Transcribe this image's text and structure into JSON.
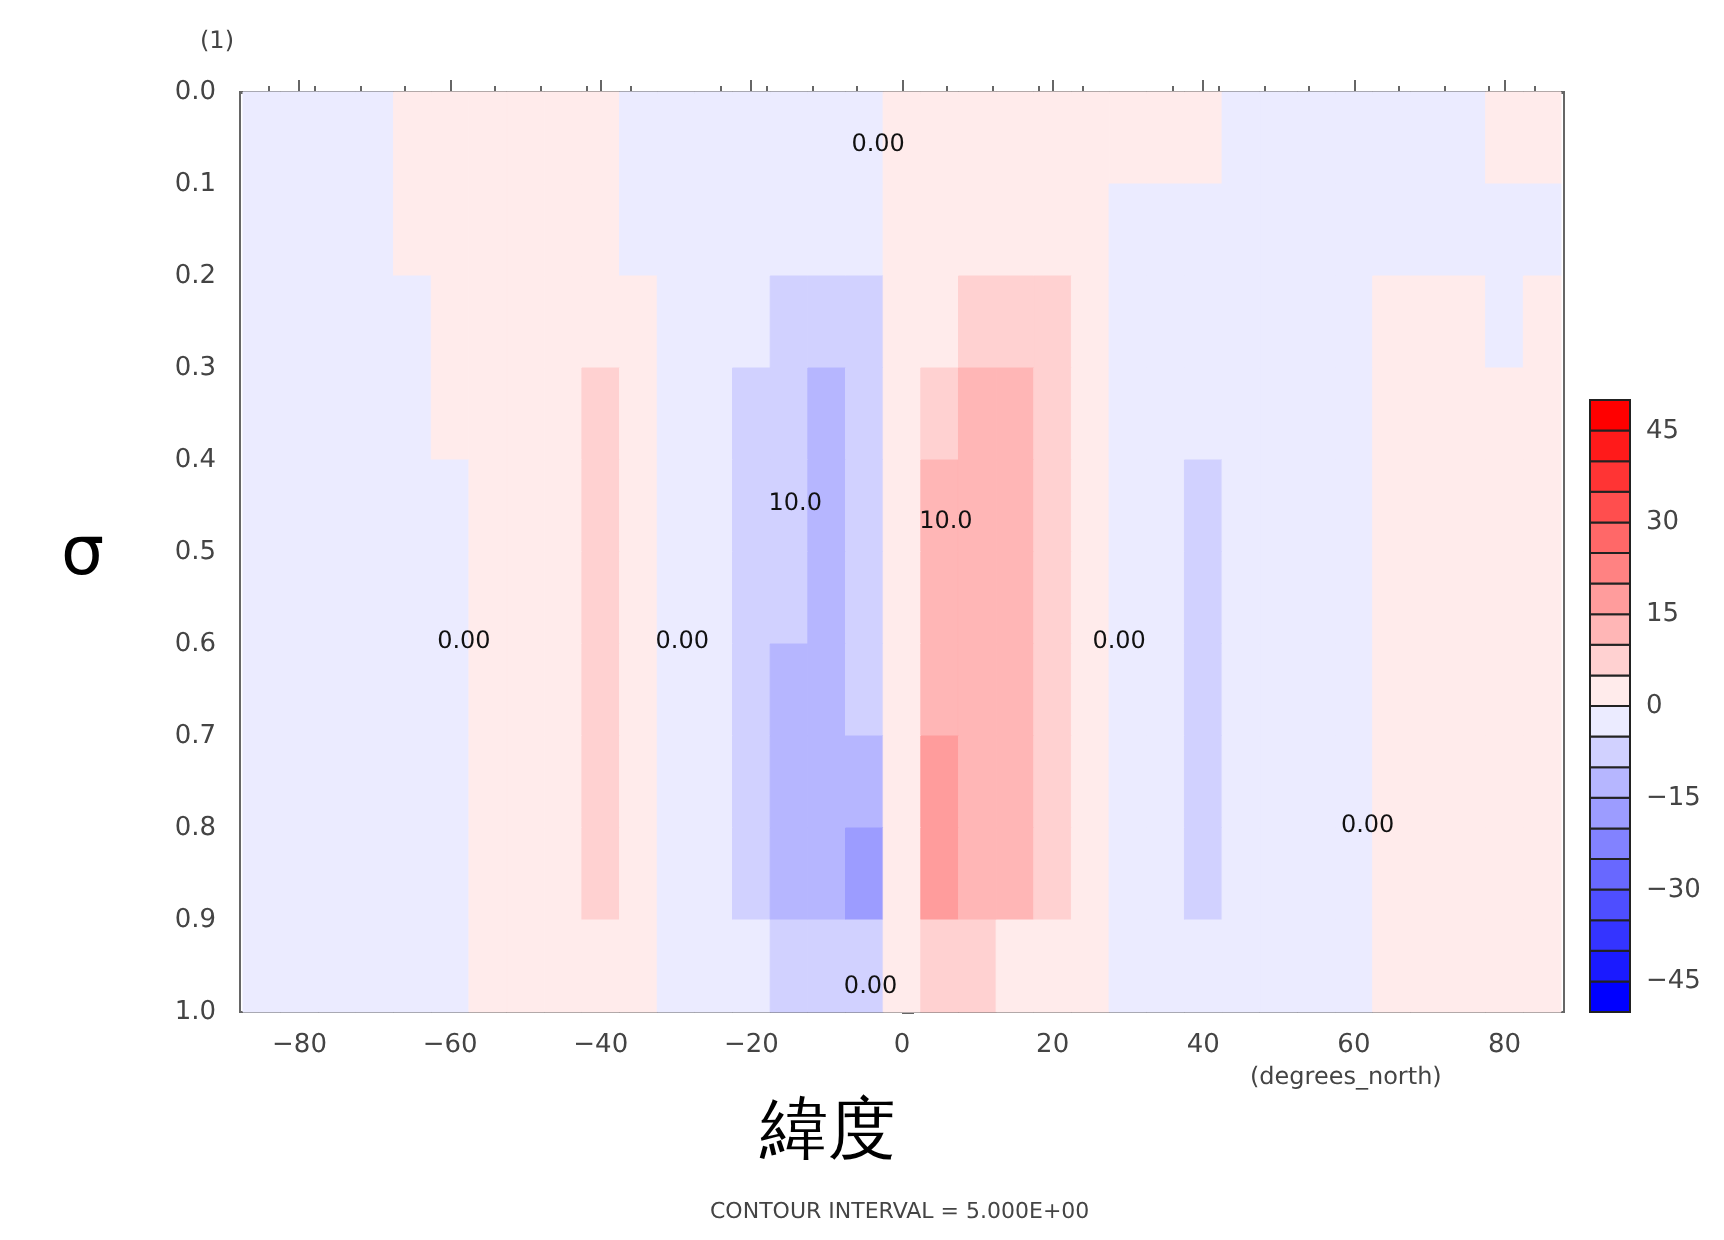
{
  "chart_data": {
    "type": "heatmap",
    "xlabel": "緯度",
    "ylabel": "σ",
    "x": [
      -85,
      -80,
      -75,
      -70,
      -65,
      -60,
      -55,
      -50,
      -45,
      -40,
      -35,
      -30,
      -25,
      -20,
      -15,
      -10,
      -5,
      0,
      5,
      10,
      15,
      20,
      25,
      30,
      35,
      40,
      45,
      50,
      55,
      60,
      65,
      70,
      75,
      80,
      85
    ],
    "y": [
      0.05,
      0.15,
      0.25,
      0.35,
      0.45,
      0.55,
      0.65,
      0.75,
      0.85,
      0.95
    ],
    "cells": [
      [
        -2,
        -2,
        -2,
        -2,
        2,
        2,
        2,
        2,
        2,
        2,
        -2,
        -2,
        -2,
        -2,
        -2,
        -2,
        -2,
        2,
        2,
        2,
        2,
        2,
        2,
        2,
        2,
        2,
        -2,
        -2,
        -2,
        -2,
        -2,
        -2,
        -2,
        2,
        2
      ],
      [
        -2,
        -2,
        -2,
        -2,
        2,
        2,
        2,
        2,
        2,
        2,
        -2,
        -2,
        -2,
        -2,
        -2,
        -2,
        -2,
        2,
        2,
        2,
        2,
        2,
        2,
        -2,
        -2,
        -2,
        -2,
        -2,
        -2,
        -2,
        -2,
        -2,
        -2,
        -2,
        -2
      ],
      [
        -2,
        -2,
        -2,
        -2,
        -2,
        2,
        2,
        2,
        2,
        2,
        2,
        -2,
        -2,
        -2,
        -7,
        -7,
        -7,
        2,
        2,
        7,
        7,
        7,
        2,
        -2,
        -2,
        -2,
        -2,
        -2,
        -2,
        -2,
        2,
        2,
        2,
        -2,
        2
      ],
      [
        -2,
        -2,
        -2,
        -2,
        -2,
        2,
        2,
        2,
        2,
        7,
        2,
        -2,
        -2,
        -7,
        -7,
        -12,
        -7,
        2,
        7,
        12,
        12,
        7,
        2,
        -2,
        -2,
        -2,
        -2,
        -2,
        -2,
        -2,
        2,
        2,
        2,
        2,
        2
      ],
      [
        -2,
        -2,
        -2,
        -2,
        -2,
        -2,
        2,
        2,
        2,
        7,
        2,
        -2,
        -2,
        -7,
        -7,
        -12,
        -7,
        2,
        12,
        12,
        12,
        7,
        2,
        -2,
        -2,
        -7,
        -2,
        -2,
        -2,
        -2,
        2,
        2,
        2,
        2,
        2
      ],
      [
        -2,
        -2,
        -2,
        -2,
        -2,
        -2,
        2,
        2,
        2,
        7,
        2,
        -2,
        -2,
        -7,
        -7,
        -12,
        -7,
        2,
        12,
        12,
        12,
        7,
        2,
        -2,
        -2,
        -7,
        -2,
        -2,
        -2,
        -2,
        2,
        2,
        2,
        2,
        2
      ],
      [
        -2,
        -2,
        -2,
        -2,
        -2,
        -2,
        2,
        2,
        2,
        7,
        2,
        -2,
        -2,
        -7,
        -12,
        -12,
        -7,
        2,
        12,
        12,
        12,
        7,
        2,
        -2,
        -2,
        -7,
        -2,
        -2,
        -2,
        -2,
        2,
        2,
        2,
        2,
        2
      ],
      [
        -2,
        -2,
        -2,
        -2,
        -2,
        -2,
        2,
        2,
        2,
        7,
        2,
        -2,
        -2,
        -7,
        -12,
        -12,
        -12,
        2,
        17,
        12,
        12,
        7,
        2,
        -2,
        -2,
        -7,
        -2,
        -2,
        -2,
        -2,
        2,
        2,
        2,
        2,
        2
      ],
      [
        -2,
        -2,
        -2,
        -2,
        -2,
        -2,
        2,
        2,
        2,
        7,
        2,
        -2,
        -2,
        -7,
        -12,
        -12,
        -17,
        2,
        17,
        12,
        12,
        7,
        2,
        -2,
        -2,
        -7,
        -2,
        -2,
        -2,
        -2,
        2,
        2,
        2,
        2,
        2
      ],
      [
        -2,
        -2,
        -2,
        -2,
        -2,
        -2,
        2,
        2,
        2,
        2,
        2,
        -2,
        -2,
        -2,
        -7,
        -7,
        -7,
        2,
        7,
        7,
        2,
        2,
        2,
        -2,
        -2,
        -2,
        -2,
        -2,
        -2,
        -2,
        2,
        2,
        2,
        2,
        2
      ]
    ],
    "xlim": [
      -87.9,
      87.9
    ],
    "xticks": [
      -80,
      -60,
      -40,
      -20,
      0,
      20,
      40,
      60,
      80
    ],
    "ylim": [
      1.0,
      0.0
    ],
    "yticks": [
      {
        "value": 0,
        "label": "0.0"
      },
      0.1,
      0.2,
      0.3,
      0.4,
      0.5,
      0.6,
      0.7,
      0.8,
      0.9,
      {
        "value": 1,
        "label": "1.0"
      }
    ],
    "clim": [
      -50,
      50
    ],
    "cticks": [
      -45,
      -30,
      -15,
      0,
      15,
      30,
      45
    ],
    "annotations": [
      "(1)",
      "(degrees_north)",
      "CONTOUR INTERVAL = 5.000E+00",
      "0.00",
      "0.00",
      "0.00",
      "10.0",
      "10.0",
      "0.00",
      "0.00",
      "0.00"
    ]
  }
}
